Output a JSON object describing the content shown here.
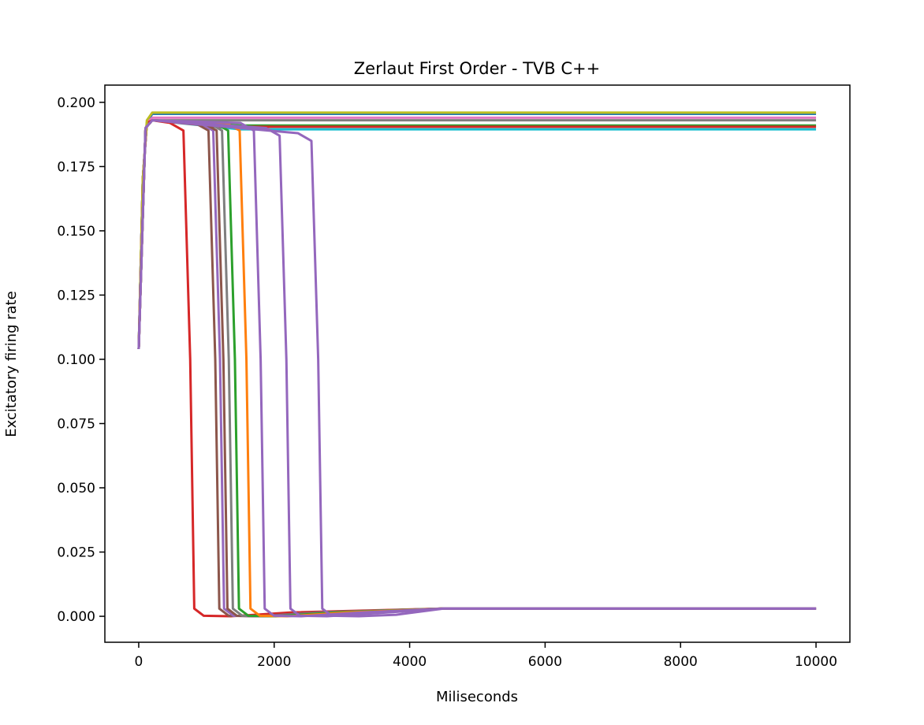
{
  "chart_data": {
    "type": "line",
    "title": "Zerlaut First Order - TVB C++",
    "x_label": "Miliseconds",
    "y_label": "Excitatory firing rate",
    "xlim": [
      -500,
      10500
    ],
    "ylim": [
      -0.0101,
      0.2067
    ],
    "xticks": [
      0,
      2000,
      4000,
      6000,
      8000,
      10000
    ],
    "yticks": [
      {
        "value": 0,
        "label": "0.000"
      },
      0.025,
      {
        "value": 0.05,
        "label": "0.050"
      },
      0.075,
      {
        "value": 0.1,
        "label": "0.100"
      },
      0.125,
      {
        "value": 0.15,
        "label": "0.150"
      },
      0.175,
      {
        "value": 0.2,
        "label": "0.200"
      }
    ],
    "series": [
      {
        "color": "#1f77b4",
        "x": [
          0,
          60,
          120,
          200,
          10000
        ],
        "values": [
          0.104,
          0.17,
          0.192,
          0.1955,
          0.1955
        ]
      },
      {
        "color": "#17becf",
        "x": [
          0,
          60,
          120,
          200,
          1500,
          10000
        ],
        "values": [
          0.104,
          0.17,
          0.192,
          0.193,
          0.1895,
          0.1895
        ]
      },
      {
        "color": "#2ca02c",
        "x": [
          0,
          60,
          120,
          200,
          1500,
          10000
        ],
        "values": [
          0.104,
          0.17,
          0.192,
          0.193,
          0.191,
          0.191
        ]
      },
      {
        "color": "#7f7f7f",
        "x": [
          0,
          60,
          120,
          200,
          10000
        ],
        "values": [
          0.104,
          0.17,
          0.192,
          0.193,
          0.193
        ]
      },
      {
        "color": "#e377c2",
        "x": [
          0,
          60,
          120,
          200,
          10000
        ],
        "values": [
          0.104,
          0.17,
          0.192,
          0.194,
          0.194
        ]
      },
      {
        "color": "#d62728",
        "x": [
          0,
          60,
          120,
          200,
          1200,
          10000
        ],
        "values": [
          0.104,
          0.17,
          0.192,
          0.193,
          0.1905,
          0.1905
        ]
      },
      {
        "color": "#bcbd22",
        "x": [
          0,
          60,
          120,
          200,
          10000
        ],
        "values": [
          0.104,
          0.17,
          0.193,
          0.196,
          0.196
        ]
      },
      {
        "color": "#d62728",
        "x": [
          0,
          100,
          200,
          460,
          660,
          760,
          820,
          960,
          1360,
          2260,
          4500,
          10000
        ],
        "values": [
          0.104,
          0.19,
          0.193,
          0.192,
          0.189,
          0.1,
          0.003,
          0.0002,
          0,
          0.0015,
          0.003,
          0.003
        ]
      },
      {
        "color": "#8c564b",
        "x": [
          0,
          100,
          200,
          830,
          1030,
          1130,
          1190,
          1330,
          1730,
          2630,
          4500,
          10000
        ],
        "values": [
          0.104,
          0.19,
          0.193,
          0.192,
          0.189,
          0.1,
          0.003,
          0.0002,
          0,
          0.0015,
          0.003,
          0.003
        ]
      },
      {
        "color": "#9467bd",
        "x": [
          0,
          100,
          200,
          900,
          1100,
          1200,
          1260,
          1400,
          1800,
          2700,
          4500,
          10000
        ],
        "values": [
          0.104,
          0.19,
          0.193,
          0.192,
          0.189,
          0.1,
          0.003,
          0.0002,
          0,
          0.0015,
          0.003,
          0.003
        ]
      },
      {
        "color": "#8c564b",
        "x": [
          0,
          100,
          200,
          950,
          1150,
          1250,
          1310,
          1450,
          1850,
          2750,
          4500,
          10000
        ],
        "values": [
          0.104,
          0.19,
          0.193,
          0.192,
          0.189,
          0.1,
          0.003,
          0.0002,
          0,
          0.0015,
          0.003,
          0.003
        ]
      },
      {
        "color": "#7f7f7f",
        "x": [
          0,
          100,
          200,
          1030,
          1230,
          1330,
          1390,
          1530,
          1930,
          2830,
          4500,
          10000
        ],
        "values": [
          0.104,
          0.19,
          0.193,
          0.192,
          0.189,
          0.1,
          0.003,
          0.0002,
          0,
          0.0015,
          0.003,
          0.003
        ]
      },
      {
        "color": "#2ca02c",
        "x": [
          0,
          100,
          200,
          1120,
          1320,
          1420,
          1480,
          1620,
          2020,
          2920,
          4500,
          10000
        ],
        "values": [
          0.104,
          0.19,
          0.193,
          0.192,
          0.189,
          0.1,
          0.003,
          0.0002,
          0,
          0.0015,
          0.003,
          0.003
        ]
      },
      {
        "color": "#ff7f0e",
        "x": [
          0,
          100,
          200,
          1290,
          1490,
          1590,
          1650,
          1790,
          2190,
          3090,
          4500,
          10000
        ],
        "values": [
          0.104,
          0.19,
          0.193,
          0.192,
          0.189,
          0.1,
          0.003,
          0.0002,
          0,
          0.0015,
          0.003,
          0.003
        ]
      },
      {
        "color": "#9467bd",
        "x": [
          0,
          100,
          200,
          1500,
          1700,
          1800,
          1860,
          2000,
          2400,
          3300,
          4500,
          10000
        ],
        "values": [
          0.104,
          0.19,
          0.193,
          0.192,
          0.189,
          0.1,
          0.003,
          0.0002,
          0,
          0.0015,
          0.003,
          0.003
        ]
      },
      {
        "color": "#9467bd",
        "x": [
          0,
          100,
          200,
          1880,
          2080,
          2180,
          2240,
          2380,
          2780,
          3680,
          4500,
          10000
        ],
        "values": [
          0.104,
          0.19,
          0.193,
          0.19,
          0.187,
          0.1,
          0.003,
          0.0002,
          0,
          0.0015,
          0.003,
          0.003
        ]
      },
      {
        "color": "#9467bd",
        "x": [
          0,
          100,
          200,
          2350,
          2550,
          2650,
          2710,
          2850,
          3250,
          3800,
          4500,
          10000
        ],
        "values": [
          0.104,
          0.19,
          0.193,
          0.188,
          0.185,
          0.1,
          0.003,
          0.0002,
          0,
          0.0006,
          0.003,
          0.003
        ]
      }
    ]
  }
}
